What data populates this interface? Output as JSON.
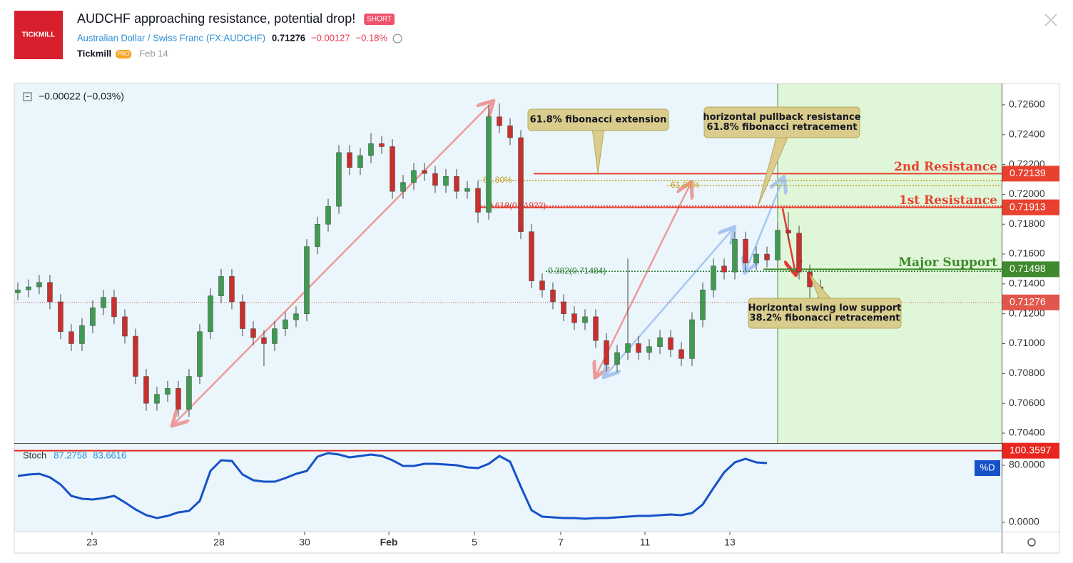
{
  "header": {
    "logo": "TICKMILL",
    "title": "AUDCHF approaching resistance, potential drop!",
    "badge": "SHORT",
    "symbol_name": "Australian Dollar / Swiss Franc",
    "symbol": "(FX:AUDCHF)",
    "price": "0.71276",
    "change": "−0.00127",
    "change_pct": "−0.18%",
    "author": "Tickmill",
    "author_badge": "PRO",
    "date": "Feb 14"
  },
  "chart_data": [
    {
      "type": "candlestick",
      "legend_change": "−0.00022 (−0.03%)",
      "up_color": "#3e9b4f",
      "down_color": "#c8302e",
      "open": [
        0.7134,
        0.7136,
        0.7138,
        0.7141,
        0.7128,
        0.7108,
        0.71,
        0.7112,
        0.7124,
        0.7131,
        0.7118,
        0.7105,
        0.7078,
        0.706,
        0.7066,
        0.707,
        0.7056,
        0.7078,
        0.7108,
        0.7132,
        0.7145,
        0.7128,
        0.711,
        0.7104,
        0.71,
        0.711,
        0.7116,
        0.712,
        0.7165,
        0.718,
        0.7192,
        0.7228,
        0.7218,
        0.7226,
        0.7234,
        0.7232,
        0.7202,
        0.7208,
        0.7216,
        0.7214,
        0.7206,
        0.7212,
        0.7202,
        0.7204,
        0.7188,
        0.7252,
        0.7246,
        0.7238,
        0.7175,
        0.7142,
        0.7136,
        0.7128,
        0.712,
        0.7114,
        0.7118,
        0.7102,
        0.7086,
        0.7094,
        0.71,
        0.7094,
        0.7098,
        0.7104,
        0.7096,
        0.709,
        0.7116,
        0.7136,
        0.7152,
        0.7148,
        0.717,
        0.7154,
        0.716,
        0.7156,
        0.7176,
        0.7174,
        0.7148,
        0.7138
      ],
      "high": [
        0.7141,
        0.7143,
        0.7146,
        0.7146,
        0.7133,
        0.7113,
        0.7117,
        0.7129,
        0.7136,
        0.7136,
        0.7123,
        0.711,
        0.7083,
        0.7071,
        0.7075,
        0.7075,
        0.7083,
        0.7113,
        0.7137,
        0.715,
        0.715,
        0.7133,
        0.7115,
        0.7109,
        0.7115,
        0.7121,
        0.7125,
        0.717,
        0.7185,
        0.7197,
        0.7233,
        0.7233,
        0.7231,
        0.7241,
        0.7239,
        0.7237,
        0.7213,
        0.7221,
        0.7221,
        0.7219,
        0.7217,
        0.7217,
        0.7209,
        0.7209,
        0.726,
        0.7261,
        0.7251,
        0.7243,
        0.718,
        0.7147,
        0.7141,
        0.7133,
        0.7125,
        0.7123,
        0.7123,
        0.7107,
        0.7099,
        0.7157,
        0.7105,
        0.7103,
        0.7109,
        0.7109,
        0.7101,
        0.7121,
        0.7141,
        0.7157,
        0.7157,
        0.7175,
        0.7175,
        0.7165,
        0.7165,
        0.7181,
        0.7188,
        0.7179,
        0.7153,
        0.7143
      ],
      "low": [
        0.7129,
        0.7131,
        0.7133,
        0.7123,
        0.7103,
        0.7095,
        0.7095,
        0.7107,
        0.7119,
        0.7113,
        0.71,
        0.7073,
        0.7055,
        0.7055,
        0.7061,
        0.7051,
        0.7051,
        0.7073,
        0.7103,
        0.7127,
        0.7123,
        0.7105,
        0.7099,
        0.7085,
        0.7095,
        0.7105,
        0.7111,
        0.7115,
        0.716,
        0.7175,
        0.7187,
        0.7213,
        0.7213,
        0.7221,
        0.7227,
        0.7197,
        0.7197,
        0.7203,
        0.7209,
        0.7201,
        0.7201,
        0.7197,
        0.7197,
        0.7181,
        0.7183,
        0.7241,
        0.7233,
        0.717,
        0.7137,
        0.7131,
        0.7123,
        0.7115,
        0.7109,
        0.7109,
        0.7097,
        0.7081,
        0.7081,
        0.7089,
        0.7089,
        0.7089,
        0.7093,
        0.7091,
        0.7085,
        0.7085,
        0.7111,
        0.7131,
        0.7143,
        0.7143,
        0.7149,
        0.7149,
        0.7151,
        0.7151,
        0.7169,
        0.7143,
        0.7123,
        0.7123
      ],
      "close": [
        0.7136,
        0.7138,
        0.7141,
        0.7128,
        0.7108,
        0.71,
        0.7112,
        0.7124,
        0.7131,
        0.7118,
        0.7105,
        0.7078,
        0.706,
        0.7066,
        0.707,
        0.7056,
        0.7078,
        0.7108,
        0.7132,
        0.7145,
        0.7128,
        0.711,
        0.7104,
        0.71,
        0.711,
        0.7116,
        0.712,
        0.7165,
        0.718,
        0.7192,
        0.7228,
        0.7218,
        0.7226,
        0.7234,
        0.7232,
        0.7202,
        0.7208,
        0.7216,
        0.7214,
        0.7206,
        0.7212,
        0.7202,
        0.7204,
        0.7188,
        0.7252,
        0.7246,
        0.7238,
        0.7175,
        0.7142,
        0.7136,
        0.7128,
        0.712,
        0.7114,
        0.7118,
        0.7102,
        0.7086,
        0.7094,
        0.71,
        0.7094,
        0.7098,
        0.7104,
        0.7096,
        0.709,
        0.7116,
        0.7136,
        0.7152,
        0.7148,
        0.717,
        0.7154,
        0.716,
        0.7156,
        0.7176,
        0.7174,
        0.7148,
        0.7138,
        0.7128
      ],
      "xlim": [
        -0.33,
        91.93
      ],
      "ylim": [
        0.70333,
        0.72743
      ],
      "xticks": [
        {
          "value": 6.93,
          "label": "23"
        },
        {
          "value": 18.8,
          "label": "28"
        },
        {
          "value": 26.8,
          "label": "30"
        },
        {
          "value": 34.67,
          "label": "Feb"
        },
        {
          "value": 42.67,
          "label": "5"
        },
        {
          "value": 50.73,
          "label": "7"
        },
        {
          "value": 58.6,
          "label": "11"
        },
        {
          "value": 66.53,
          "label": "13"
        }
      ],
      "yticks": [
        {
          "value": 0.726,
          "label": "0.72600"
        },
        {
          "value": 0.724,
          "label": "0.72400"
        },
        {
          "value": 0.722,
          "label": "0.72200"
        },
        {
          "value": 0.72,
          "label": "0.72000"
        },
        {
          "value": 0.718,
          "label": "0.71800"
        },
        {
          "value": 0.716,
          "label": "0.71600"
        },
        {
          "value": 0.714,
          "label": "0.71400"
        },
        {
          "value": 0.712,
          "label": "0.71200"
        },
        {
          "value": 0.71,
          "label": "0.71000"
        },
        {
          "value": 0.708,
          "label": "0.70800"
        },
        {
          "value": 0.706,
          "label": "0.70600"
        },
        {
          "value": 0.704,
          "label": "0.70400"
        }
      ],
      "levels": [
        {
          "name": "2nd Resistance",
          "value": 0.72139,
          "color": "#e8412f"
        },
        {
          "name": "1st Resistance",
          "value": 0.71913,
          "color": "#e8412f"
        },
        {
          "name": "Major Support",
          "value": 0.71498,
          "color": "#3f8a2c"
        }
      ],
      "current_price": 0.71276,
      "current_color": "#e2574c",
      "fib_levels": [
        {
          "value": 0.72093,
          "label": "61.80%",
          "color": "#c9a227"
        },
        {
          "value": 0.7206,
          "label": "61.80%",
          "color": "#c9a227"
        },
        {
          "value": 0.71922,
          "label": "0.618(0.71922)",
          "color": "#e53935"
        },
        {
          "value": 0.71484,
          "label": "0.382(0.71484)",
          "color": "#2e7d32"
        }
      ],
      "annotations": [
        {
          "lines": [
            "61.8% fibonacci extension"
          ]
        },
        {
          "lines": [
            "horizontal pullback resistance",
            "61.8% fibonacci retracement"
          ]
        },
        {
          "lines": [
            "Horizontal swing low support",
            "38.2% fibonacci retracement"
          ]
        }
      ]
    },
    {
      "type": "line",
      "name": "Stoch",
      "legend_values": [
        87.2758,
        83.6616
      ],
      "color": "#1651c8",
      "d_label": "%D",
      "values": [
        65,
        67,
        68,
        63,
        53,
        37,
        33,
        32,
        34,
        37,
        28,
        18,
        10,
        6,
        9,
        14,
        16,
        30,
        72,
        87,
        86,
        67,
        59,
        57,
        57,
        62,
        68,
        72,
        92,
        97,
        95,
        91,
        93,
        95,
        93,
        87,
        79,
        79,
        82,
        82,
        81,
        80,
        77,
        76,
        82,
        93,
        85,
        50,
        17,
        8,
        7,
        6,
        6,
        5,
        6,
        6,
        7,
        8,
        9,
        9,
        10,
        11,
        10,
        13,
        25,
        48,
        70,
        84,
        89,
        84,
        83,
        null,
        null,
        null,
        null,
        null
      ],
      "ylim": [
        -13,
        110
      ],
      "yticks": [
        {
          "value": 80,
          "label": "80.0000"
        },
        {
          "value": 0,
          "label": "0.0000"
        }
      ],
      "ref_line": {
        "value": 100.3597,
        "color": "#e8261e"
      }
    }
  ]
}
